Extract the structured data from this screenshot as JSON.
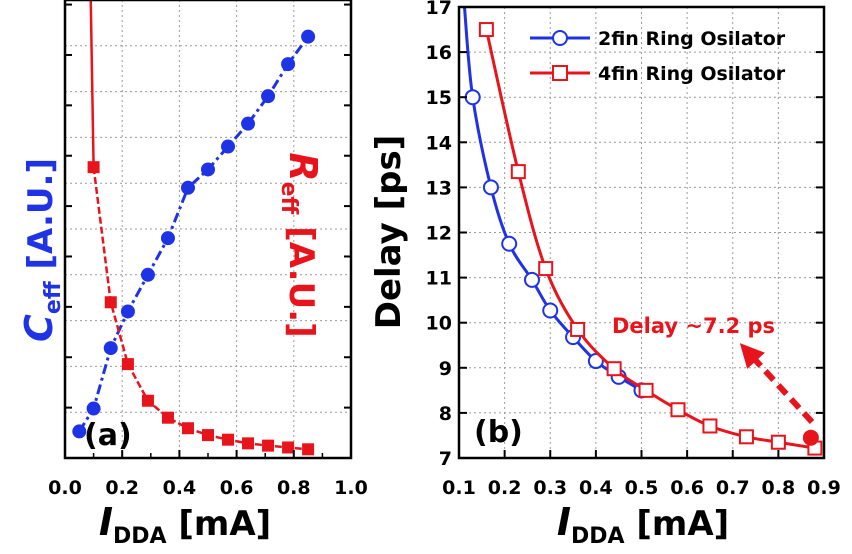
{
  "colors": {
    "blue": "#1f33e6",
    "red": "#e8141c",
    "grid": "#9a9a9a",
    "axis": "#000000"
  },
  "chart_data": [
    {
      "type": "line",
      "panel_label": "(a)",
      "xlabel_main": "I",
      "xlabel_sub": "DDA",
      "xlabel_unit": "[mA]",
      "xlim": [
        0.0,
        1.0
      ],
      "xticks": [
        "0.0",
        "0.2",
        "0.4",
        "0.6",
        "0.8",
        "1.0"
      ],
      "ylabel_left_main": "C",
      "ylabel_left_sub": "eff",
      "ylabel_left_unit": "[A.U.]",
      "ylabel_right_main": "R",
      "ylabel_right_sub": "eff",
      "ylabel_right_unit": "[A.U.]",
      "yticks_labeled": false,
      "grid": true,
      "series": [
        {
          "name": "",
          "label": "C_eff",
          "axis": "left",
          "color": "#1f33e6",
          "marker": "circle",
          "line_style": "dash-dot",
          "x": [
            0.05,
            0.1,
            0.16,
            0.22,
            0.29,
            0.36,
            0.43,
            0.5,
            0.57,
            0.64,
            0.71,
            0.78,
            0.85
          ],
          "y": [
            0.58,
            1.08,
            2.4,
            3.2,
            4.0,
            4.8,
            5.9,
            6.3,
            6.8,
            7.3,
            7.9,
            8.6,
            9.2
          ]
        },
        {
          "name": "",
          "label": "R_eff",
          "axis": "right",
          "color": "#e8141c",
          "marker": "square",
          "line_style": "solid-to-dashed",
          "x": [
            0.1,
            0.16,
            0.22,
            0.29,
            0.36,
            0.43,
            0.5,
            0.57,
            0.64,
            0.71,
            0.78,
            0.85
          ],
          "y": [
            6.35,
            3.4,
            2.05,
            1.25,
            0.88,
            0.65,
            0.5,
            0.4,
            0.32,
            0.27,
            0.23,
            0.19
          ]
        }
      ]
    },
    {
      "type": "line",
      "panel_label": "(b)",
      "xlabel_main": "I",
      "xlabel_sub": "DDA",
      "xlabel_unit": "[mA]",
      "ylabel": "Delay [ps]",
      "xlim": [
        0.1,
        0.9
      ],
      "ylim": [
        7,
        17
      ],
      "xticks": [
        "0.1",
        "0.2",
        "0.3",
        "0.4",
        "0.5",
        "0.6",
        "0.7",
        "0.8",
        "0.9"
      ],
      "yticks": [
        "7",
        "8",
        "9",
        "10",
        "11",
        "12",
        "13",
        "14",
        "15",
        "16",
        "17"
      ],
      "grid": true,
      "legend_position": "top-right",
      "annotation": "Delay ~7.2 ps",
      "series": [
        {
          "name": "2fin Ring Osilator",
          "color": "#1f33e6",
          "marker": "circle-open",
          "x": [
            0.13,
            0.17,
            0.21,
            0.26,
            0.3,
            0.35,
            0.4,
            0.45,
            0.5
          ],
          "y": [
            15.0,
            13.0,
            11.75,
            10.95,
            10.27,
            9.68,
            9.15,
            8.8,
            8.5
          ]
        },
        {
          "name": "4fin Ring Osilator",
          "color": "#e8141c",
          "marker": "square-open",
          "x": [
            0.16,
            0.23,
            0.29,
            0.36,
            0.44,
            0.51,
            0.58,
            0.65,
            0.73,
            0.8,
            0.88
          ],
          "y": [
            16.5,
            13.35,
            11.2,
            9.85,
            8.98,
            8.5,
            8.07,
            7.71,
            7.47,
            7.35,
            7.22
          ]
        }
      ]
    }
  ]
}
